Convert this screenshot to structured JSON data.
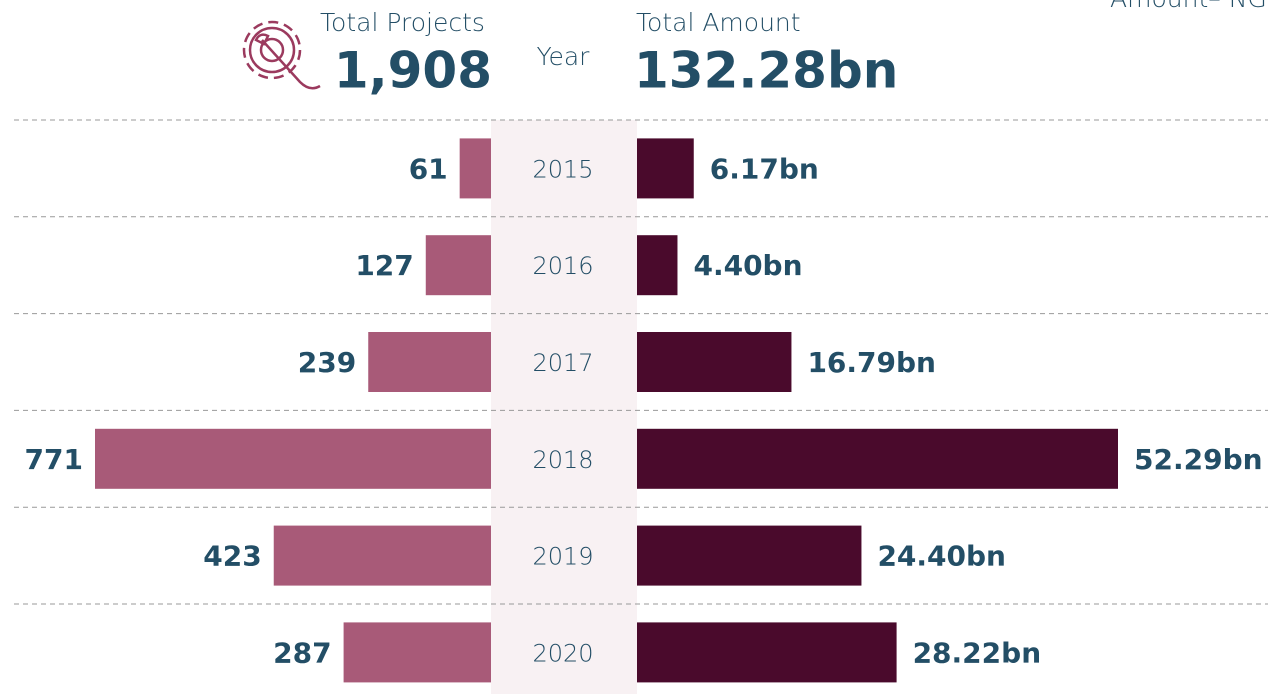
{
  "chart_data": {
    "type": "bar",
    "note": "Amount– NGN",
    "center_label": "Year",
    "categories": [
      "2015",
      "2016",
      "2017",
      "2018",
      "2019",
      "2020"
    ],
    "series": [
      {
        "name": "Total Projects",
        "total": "1,908",
        "color": "#a85a78",
        "values": [
          61,
          127,
          239,
          771,
          423,
          287
        ]
      },
      {
        "name": "Total Amount",
        "total": "132.28bn",
        "color": "#4a0a2c",
        "values": [
          6.17,
          4.4,
          16.79,
          52.29,
          24.4,
          28.22
        ],
        "value_labels": [
          "6.17bn",
          "4.40bn",
          "16.79bn",
          "52.29bn",
          "24.40bn",
          "28.22bn"
        ]
      }
    ],
    "grid": true
  }
}
